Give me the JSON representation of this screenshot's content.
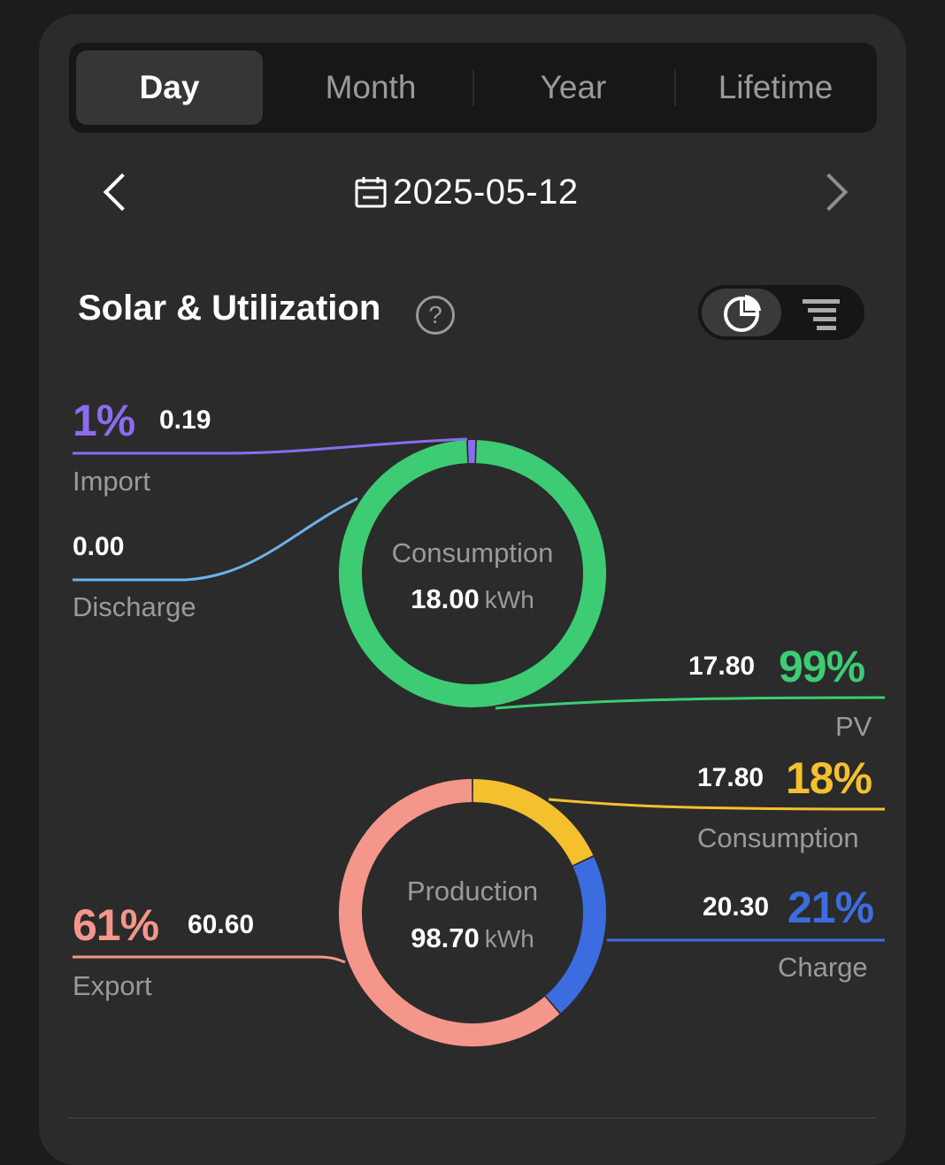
{
  "tabs": [
    {
      "label": "Day",
      "active": true
    },
    {
      "label": "Month",
      "active": false
    },
    {
      "label": "Year",
      "active": false
    },
    {
      "label": "Lifetime",
      "active": false
    }
  ],
  "date": "2025-05-12",
  "section": {
    "title": "Solar & Utilization",
    "help_icon": "question-circle-icon",
    "view_toggle": [
      "pie-chart-icon",
      "funnel-icon"
    ]
  },
  "consumption": {
    "center_title": "Consumption",
    "center_value": "18.00",
    "center_unit": "kWh",
    "import": {
      "percent": "1%",
      "value": "0.19",
      "label": "Import",
      "color": "#8b6cf0"
    },
    "discharge": {
      "value": "0.00",
      "label": "Discharge",
      "color": "#6ab4e8"
    },
    "pv": {
      "percent": "99%",
      "value": "17.80",
      "label": "PV",
      "color": "#3dcc74"
    }
  },
  "production": {
    "center_title": "Production",
    "center_value": "98.70",
    "center_unit": "kWh",
    "consumption": {
      "percent": "18%",
      "value": "17.80",
      "label": "Consumption",
      "color": "#f5c02e"
    },
    "charge": {
      "percent": "21%",
      "value": "20.30",
      "label": "Charge",
      "color": "#3b6de0"
    },
    "export": {
      "percent": "61%",
      "value": "60.60",
      "label": "Export",
      "color": "#f5968a"
    }
  },
  "chart_data": [
    {
      "type": "pie",
      "categories": [
        "Import",
        "Discharge",
        "PV"
      ],
      "values": [
        0.19,
        0.0,
        17.8
      ]
    },
    {
      "type": "pie",
      "categories": [
        "Consumption",
        "Charge",
        "Export"
      ],
      "values": [
        17.8,
        20.3,
        60.6
      ]
    }
  ]
}
